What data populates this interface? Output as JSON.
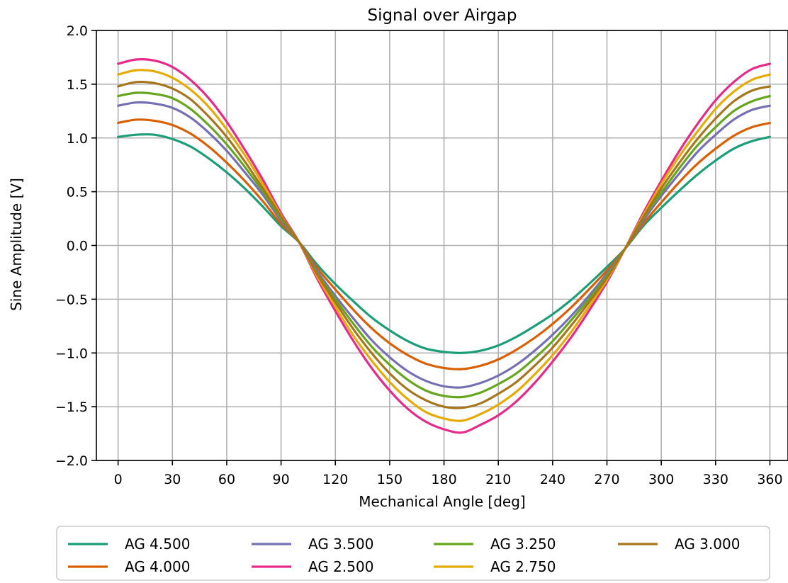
{
  "chart_data": {
    "type": "line",
    "title": "Signal over Airgap",
    "xlabel": "Mechanical Angle [deg]",
    "ylabel": "Sine Amplitude [V]",
    "xlim": [
      -12,
      370
    ],
    "ylim": [
      -2.0,
      2.0
    ],
    "xticks": [
      0,
      30,
      60,
      90,
      120,
      150,
      180,
      210,
      240,
      270,
      300,
      330,
      360
    ],
    "xtick_labels": [
      "0",
      "30",
      "60",
      "90",
      "120",
      "150",
      "180",
      "210",
      "240",
      "270",
      "300",
      "330",
      "360"
    ],
    "yticks": [
      -2.0,
      -1.5,
      -1.0,
      -0.5,
      0.0,
      0.5,
      1.0,
      1.5,
      2.0
    ],
    "ytick_labels": [
      "−2.0",
      "−1.5",
      "−1.0",
      "−0.5",
      "0.0",
      "0.5",
      "1.0",
      "1.5",
      "2.0"
    ],
    "grid": true,
    "legend_position": "bottom-center",
    "legend_columns": 4,
    "x": [
      0,
      10,
      20,
      30,
      40,
      50,
      60,
      70,
      80,
      90,
      100,
      110,
      120,
      130,
      140,
      150,
      160,
      170,
      180,
      190,
      200,
      210,
      220,
      230,
      240,
      250,
      260,
      270,
      280,
      290,
      300,
      310,
      320,
      330,
      340,
      350,
      360
    ],
    "series": [
      {
        "name": "AG 4.500",
        "color": "#1b9e77",
        "values": [
          1.01,
          1.03,
          1.03,
          0.99,
          0.92,
          0.81,
          0.68,
          0.53,
          0.36,
          0.18,
          0.03,
          -0.18,
          -0.36,
          -0.52,
          -0.67,
          -0.79,
          -0.89,
          -0.96,
          -0.99,
          -1.0,
          -0.98,
          -0.93,
          -0.85,
          -0.75,
          -0.64,
          -0.51,
          -0.36,
          -0.2,
          -0.03,
          0.18,
          0.35,
          0.51,
          0.66,
          0.79,
          0.9,
          0.97,
          1.01
        ]
      },
      {
        "name": "AG 4.000",
        "color": "#d95f02",
        "values": [
          1.14,
          1.17,
          1.16,
          1.12,
          1.04,
          0.92,
          0.77,
          0.6,
          0.41,
          0.2,
          0.03,
          -0.21,
          -0.41,
          -0.6,
          -0.77,
          -0.91,
          -1.02,
          -1.1,
          -1.14,
          -1.15,
          -1.12,
          -1.06,
          -0.97,
          -0.86,
          -0.73,
          -0.58,
          -0.41,
          -0.23,
          -0.03,
          0.2,
          0.4,
          0.59,
          0.76,
          0.9,
          1.02,
          1.1,
          1.14
        ]
      },
      {
        "name": "AG 3.500",
        "color": "#7570b3",
        "values": [
          1.3,
          1.33,
          1.32,
          1.28,
          1.19,
          1.05,
          0.88,
          0.68,
          0.47,
          0.23,
          0.03,
          -0.24,
          -0.47,
          -0.68,
          -0.88,
          -1.04,
          -1.17,
          -1.26,
          -1.31,
          -1.32,
          -1.28,
          -1.21,
          -1.11,
          -0.98,
          -0.83,
          -0.66,
          -0.47,
          -0.26,
          -0.03,
          0.23,
          0.46,
          0.67,
          0.87,
          1.03,
          1.17,
          1.26,
          1.3
        ]
      },
      {
        "name": "AG 2.500",
        "color": "#e7298a",
        "values": [
          1.69,
          1.73,
          1.72,
          1.66,
          1.54,
          1.37,
          1.15,
          0.89,
          0.61,
          0.3,
          0.03,
          -0.31,
          -0.61,
          -0.89,
          -1.14,
          -1.35,
          -1.52,
          -1.64,
          -1.71,
          -1.74,
          -1.67,
          -1.58,
          -1.45,
          -1.28,
          -1.08,
          -0.86,
          -0.61,
          -0.34,
          -0.03,
          0.3,
          0.6,
          0.88,
          1.13,
          1.35,
          1.52,
          1.64,
          1.69
        ]
      },
      {
        "name": "AG 3.250",
        "color": "#66a61e",
        "values": [
          1.39,
          1.42,
          1.41,
          1.37,
          1.27,
          1.12,
          0.94,
          0.73,
          0.5,
          0.25,
          0.03,
          -0.26,
          -0.5,
          -0.73,
          -0.94,
          -1.11,
          -1.25,
          -1.35,
          -1.4,
          -1.41,
          -1.37,
          -1.29,
          -1.19,
          -1.05,
          -0.89,
          -0.7,
          -0.5,
          -0.28,
          -0.03,
          0.25,
          0.49,
          0.72,
          0.93,
          1.1,
          1.25,
          1.34,
          1.39
        ]
      },
      {
        "name": "AG 2.750",
        "color": "#e6ab02",
        "values": [
          1.59,
          1.63,
          1.62,
          1.56,
          1.45,
          1.29,
          1.08,
          0.84,
          0.57,
          0.28,
          0.03,
          -0.29,
          -0.57,
          -0.84,
          -1.07,
          -1.27,
          -1.43,
          -1.55,
          -1.61,
          -1.63,
          -1.57,
          -1.48,
          -1.36,
          -1.2,
          -1.02,
          -0.81,
          -0.57,
          -0.32,
          -0.03,
          0.28,
          0.57,
          0.83,
          1.06,
          1.27,
          1.43,
          1.54,
          1.59
        ]
      },
      {
        "name": "AG 3.000",
        "color": "#a6761d",
        "values": [
          1.48,
          1.52,
          1.51,
          1.46,
          1.36,
          1.2,
          1.01,
          0.78,
          0.53,
          0.27,
          0.03,
          -0.27,
          -0.53,
          -0.78,
          -1.0,
          -1.19,
          -1.34,
          -1.44,
          -1.5,
          -1.51,
          -1.47,
          -1.38,
          -1.27,
          -1.12,
          -0.95,
          -0.75,
          -0.53,
          -0.3,
          -0.03,
          0.26,
          0.53,
          0.77,
          0.99,
          1.18,
          1.34,
          1.44,
          1.48
        ]
      }
    ]
  }
}
